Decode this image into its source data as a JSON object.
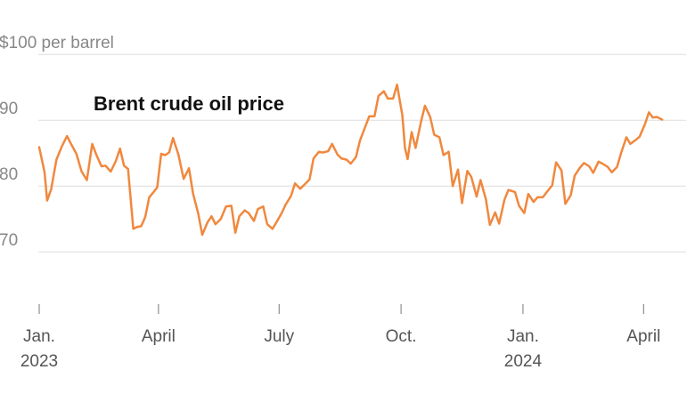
{
  "chart_data": {
    "type": "line",
    "title": "Brent crude oil price",
    "ylabel": "",
    "xlabel": "",
    "ylim": [
      63,
      103
    ],
    "xlim": [
      "2023-01-01",
      "2024-04-25"
    ],
    "grid": true,
    "y_ticks": [
      {
        "value": 100,
        "label": "$100 per barrel"
      },
      {
        "value": 90,
        "label": "90"
      },
      {
        "value": 80,
        "label": "80"
      },
      {
        "value": 70,
        "label": "70"
      }
    ],
    "x_ticks": [
      {
        "date": "2023-01-01",
        "label": "Jan.",
        "year": "2023"
      },
      {
        "date": "2023-04-01",
        "label": "April",
        "year": ""
      },
      {
        "date": "2023-07-01",
        "label": "July",
        "year": ""
      },
      {
        "date": "2023-10-01",
        "label": "Oct.",
        "year": ""
      },
      {
        "date": "2024-01-01",
        "label": "Jan.",
        "year": "2024"
      },
      {
        "date": "2024-04-01",
        "label": "April",
        "year": ""
      }
    ],
    "series": [
      {
        "name": "",
        "color": "#f0883e",
        "x": [
          "2023-01-01",
          "2023-01-05",
          "2023-01-07",
          "2023-01-10",
          "2023-01-14",
          "2023-01-18",
          "2023-01-22",
          "2023-01-25",
          "2023-01-29",
          "2023-02-02",
          "2023-02-06",
          "2023-02-10",
          "2023-02-13",
          "2023-02-17",
          "2023-02-20",
          "2023-02-24",
          "2023-02-28",
          "2023-03-03",
          "2023-03-06",
          "2023-03-09",
          "2023-03-13",
          "2023-03-16",
          "2023-03-19",
          "2023-03-22",
          "2023-03-25",
          "2023-03-28",
          "2023-03-31",
          "2023-04-03",
          "2023-04-06",
          "2023-04-09",
          "2023-04-12",
          "2023-04-16",
          "2023-04-20",
          "2023-04-24",
          "2023-04-27",
          "2023-05-01",
          "2023-05-04",
          "2023-05-08",
          "2023-05-11",
          "2023-05-14",
          "2023-05-18",
          "2023-05-22",
          "2023-05-26",
          "2023-05-29",
          "2023-06-01",
          "2023-06-05",
          "2023-06-08",
          "2023-06-12",
          "2023-06-15",
          "2023-06-19",
          "2023-06-22",
          "2023-06-26",
          "2023-06-29",
          "2023-07-03",
          "2023-07-06",
          "2023-07-10",
          "2023-07-13",
          "2023-07-17",
          "2023-07-20",
          "2023-07-24",
          "2023-07-27",
          "2023-07-31",
          "2023-08-03",
          "2023-08-07",
          "2023-08-10",
          "2023-08-14",
          "2023-08-17",
          "2023-08-21",
          "2023-08-24",
          "2023-08-28",
          "2023-08-31",
          "2023-09-04",
          "2023-09-07",
          "2023-09-11",
          "2023-09-14",
          "2023-09-18",
          "2023-09-21",
          "2023-09-25",
          "2023-09-28",
          "2023-10-02",
          "2023-10-04",
          "2023-10-06",
          "2023-10-09",
          "2023-10-12",
          "2023-10-16",
          "2023-10-19",
          "2023-10-23",
          "2023-10-26",
          "2023-10-30",
          "2023-11-02",
          "2023-11-06",
          "2023-11-09",
          "2023-11-13",
          "2023-11-16",
          "2023-11-20",
          "2023-11-23",
          "2023-11-27",
          "2023-11-30",
          "2023-12-04",
          "2023-12-07",
          "2023-12-11",
          "2023-12-14",
          "2023-12-18",
          "2023-12-21",
          "2023-12-26",
          "2023-12-29",
          "2024-01-02",
          "2024-01-05",
          "2024-01-09",
          "2024-01-12",
          "2024-01-16",
          "2024-01-19",
          "2024-01-23",
          "2024-01-26",
          "2024-01-30",
          "2024-02-02",
          "2024-02-06",
          "2024-02-09",
          "2024-02-13",
          "2024-02-16",
          "2024-02-20",
          "2024-02-23",
          "2024-02-27",
          "2024-03-01",
          "2024-03-05",
          "2024-03-08",
          "2024-03-12",
          "2024-03-15",
          "2024-03-19",
          "2024-03-22",
          "2024-03-26",
          "2024-03-29",
          "2024-04-02",
          "2024-04-05",
          "2024-04-08",
          "2024-04-11",
          "2024-04-15"
        ],
        "values": [
          85.9,
          82.1,
          77.8,
          79.5,
          84.0,
          86.0,
          87.6,
          86.4,
          84.9,
          82.2,
          80.9,
          86.4,
          84.8,
          83.0,
          83.1,
          82.2,
          83.9,
          85.7,
          83.1,
          82.6,
          73.5,
          73.8,
          73.9,
          75.3,
          78.3,
          79.0,
          79.8,
          84.9,
          84.7,
          85.1,
          87.3,
          84.8,
          81.1,
          82.7,
          78.9,
          75.8,
          72.6,
          74.5,
          75.4,
          74.2,
          75.0,
          76.9,
          77.0,
          72.9,
          75.4,
          76.3,
          75.9,
          74.7,
          76.5,
          76.9,
          74.2,
          73.5,
          74.5,
          75.9,
          77.2,
          78.5,
          80.4,
          79.6,
          80.2,
          81.0,
          84.2,
          85.2,
          85.1,
          85.3,
          86.4,
          84.8,
          84.2,
          84.0,
          83.4,
          84.4,
          86.9,
          89.0,
          90.6,
          90.6,
          93.7,
          94.4,
          93.3,
          93.3,
          95.4,
          90.7,
          85.8,
          84.1,
          88.2,
          85.8,
          89.7,
          92.2,
          90.5,
          87.8,
          87.4,
          84.7,
          85.2,
          80.0,
          82.5,
          77.4,
          82.3,
          81.4,
          78.4,
          80.9,
          78.0,
          74.1,
          76.0,
          74.3,
          77.9,
          79.4,
          79.1,
          77.0,
          75.9,
          78.8,
          77.6,
          78.3,
          78.3,
          79.1,
          80.1,
          83.6,
          82.4,
          77.3,
          78.6,
          81.6,
          82.8,
          83.5,
          83.0,
          82.0,
          83.7,
          83.4,
          82.9,
          82.1,
          82.9,
          85.0,
          87.4,
          86.4,
          87.0,
          87.5,
          89.4,
          91.2,
          90.4,
          90.5,
          90.1
        ]
      }
    ]
  }
}
